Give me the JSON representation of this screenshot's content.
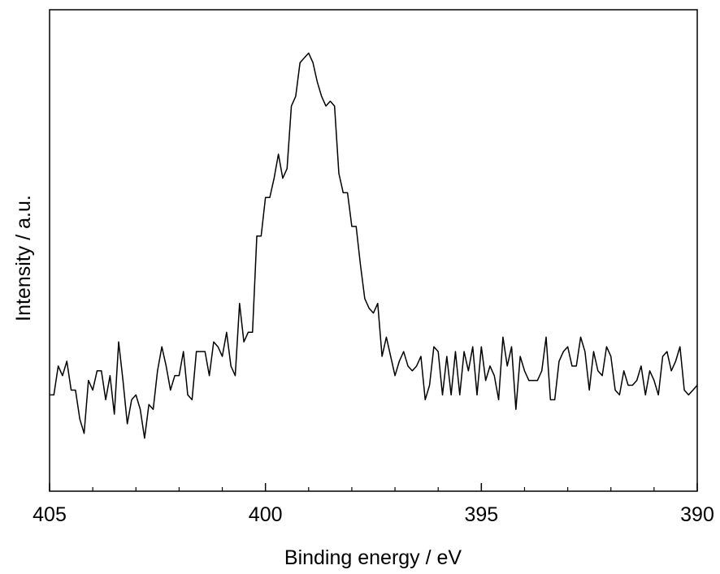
{
  "chart_data": {
    "type": "line",
    "xlabel": "Binding energy / eV",
    "ylabel": "Intensity / a.u.",
    "xlim": [
      405,
      390
    ],
    "x_reversed": true,
    "y_ticks_shown": false,
    "grid": false,
    "colors": {
      "line": "#000000",
      "axis": "#000000"
    },
    "xticks": [
      {
        "value": 405,
        "label": "405"
      },
      {
        "value": 400,
        "label": "400"
      },
      {
        "value": 395,
        "label": "395"
      },
      {
        "value": 390,
        "label": "390"
      }
    ],
    "minor_xticks": [
      404,
      403,
      402,
      401,
      399,
      398,
      397,
      396,
      394,
      393,
      392,
      391
    ],
    "series": [
      {
        "x": [
          405.0,
          404.9,
          404.8,
          404.7,
          404.6,
          404.5,
          404.4,
          404.3,
          404.2,
          404.1,
          404.0,
          403.9,
          403.8,
          403.7,
          403.6,
          403.5,
          403.4,
          403.3,
          403.2,
          403.1,
          403.0,
          402.9,
          402.8,
          402.7,
          402.6,
          402.5,
          402.4,
          402.3,
          402.2,
          402.1,
          402.0,
          401.9,
          401.8,
          401.7,
          401.6,
          401.5,
          401.4,
          401.3,
          401.2,
          401.1,
          401.0,
          400.9,
          400.8,
          400.7,
          400.6,
          400.5,
          400.4,
          400.3,
          400.2,
          400.1,
          400.0,
          399.9,
          399.8,
          399.7,
          399.6,
          399.5,
          399.4,
          399.3,
          399.2,
          399.1,
          399.0,
          398.9,
          398.8,
          398.7,
          398.6,
          398.5,
          398.4,
          398.3,
          398.2,
          398.1,
          398.0,
          397.9,
          397.8,
          397.7,
          397.6,
          397.5,
          397.4,
          397.3,
          397.2,
          397.1,
          397.0,
          396.9,
          396.8,
          396.7,
          396.6,
          396.5,
          396.4,
          396.3,
          396.2,
          396.1,
          396.0,
          395.9,
          395.8,
          395.7,
          395.6,
          395.5,
          395.4,
          395.3,
          395.2,
          395.1,
          395.0,
          394.9,
          394.8,
          394.7,
          394.6,
          394.5,
          394.4,
          394.3,
          394.2,
          394.1,
          394.0,
          393.9,
          393.8,
          393.7,
          393.6,
          393.5,
          393.4,
          393.3,
          393.2,
          393.1,
          393.0,
          392.9,
          392.8,
          392.7,
          392.6,
          392.5,
          392.4,
          392.3,
          392.2,
          392.1,
          392.0,
          391.9,
          391.8,
          391.7,
          391.6,
          391.5,
          391.4,
          391.3,
          391.2,
          391.1,
          391.0,
          390.9,
          390.8,
          390.7,
          390.6,
          390.5,
          390.4,
          390.3,
          390.2,
          390.1,
          390.0
        ],
        "values": [
          20,
          20,
          26,
          24,
          27,
          21,
          21,
          15,
          12,
          23,
          21,
          25,
          25,
          19,
          24,
          16,
          31,
          23,
          14,
          19,
          20,
          17,
          11,
          18,
          17,
          25,
          30,
          26,
          21,
          24,
          24,
          29,
          20,
          19,
          29,
          29,
          29,
          24,
          31,
          30,
          28,
          33,
          26,
          24,
          39,
          31,
          33,
          33,
          53,
          53,
          61,
          61,
          65,
          70,
          65,
          67,
          80,
          82,
          89,
          90,
          91,
          89,
          85,
          82,
          80,
          81,
          80,
          66,
          62,
          62,
          55,
          55,
          47,
          40,
          38,
          37,
          39,
          28,
          32,
          28,
          24,
          27,
          29,
          26,
          25,
          26,
          28,
          19,
          22,
          30,
          29,
          20,
          28,
          20,
          29,
          20,
          29,
          25,
          30,
          20,
          30,
          23,
          26,
          24,
          19,
          32,
          26,
          30,
          17,
          28,
          25,
          23,
          23,
          23,
          25,
          32,
          19,
          19,
          27,
          29,
          30,
          26,
          26,
          32,
          29,
          21,
          29,
          25,
          24,
          30,
          28,
          21,
          20,
          25,
          22,
          22,
          23,
          26,
          20,
          25,
          23,
          20,
          28,
          29,
          25,
          27,
          30,
          21,
          20,
          21,
          22
        ]
      }
    ]
  }
}
